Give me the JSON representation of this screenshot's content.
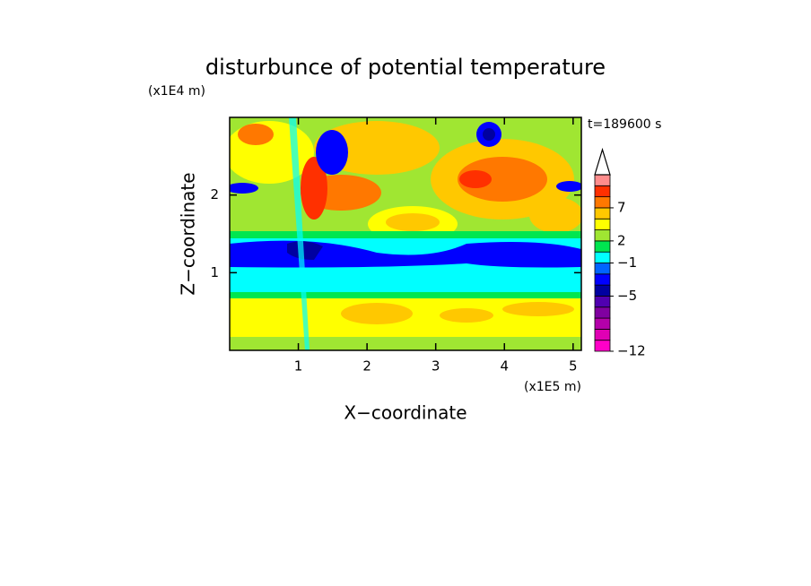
{
  "chart_data": {
    "type": "contour",
    "title": "disturbunce of potential temperature",
    "y_unit": "(x1E4 m)",
    "x_unit": "(x1E5 m)",
    "time_label": "t=189600 s",
    "xlabel": "X−coordinate",
    "ylabel": "Z−coordinate",
    "xlim": [
      0,
      5.12
    ],
    "ylim": [
      0,
      3
    ],
    "xticks": [
      1,
      2,
      3,
      4,
      5
    ],
    "yticks": [
      1,
      2
    ],
    "colorbar": {
      "levels": [
        -12,
        -10,
        -8,
        -7,
        -6,
        -5,
        -4,
        -2,
        -1,
        0,
        2,
        3,
        4,
        7,
        9,
        11,
        13
      ],
      "colors": [
        "#ff00c8",
        "#e000b4",
        "#b400aa",
        "#8000a0",
        "#5000b0",
        "#0000a0",
        "#0000ff",
        "#0064ff",
        "#00ffff",
        "#00e650",
        "#a0e632",
        "#ffff00",
        "#ffc800",
        "#ff7800",
        "#ff3000",
        "#ff8c8c"
      ],
      "ticks": [
        {
          "value": -12,
          "label": "−12"
        },
        {
          "value": -5,
          "label": "−5"
        },
        {
          "value": -1,
          "label": "−1"
        },
        2,
        7
      ]
    }
  }
}
